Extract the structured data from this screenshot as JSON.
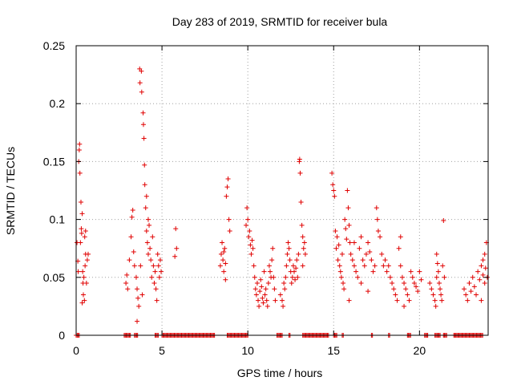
{
  "chart_data": {
    "type": "scatter",
    "title": "Day 283 of 2019, SRMTID for receiver bula",
    "xlabel": "GPS time / hours",
    "ylabel": "SRMTID / TECUs",
    "xlim": [
      0,
      24
    ],
    "ylim": [
      0,
      0.25
    ],
    "xticks": [
      0,
      5,
      10,
      15,
      20
    ],
    "xtick_labels": [
      "0",
      "5",
      "10",
      "15",
      "20"
    ],
    "yticks": [
      0,
      0.05,
      0.1,
      0.15,
      0.2,
      0.25
    ],
    "ytick_labels": [
      "0",
      "0.05",
      "0.1",
      "0.15",
      "0.2",
      "0.25"
    ],
    "grid": true,
    "marker": "+",
    "color": "#e00000",
    "series": [
      {
        "name": "SRMTID",
        "points": [
          [
            0.05,
            0.08
          ],
          [
            0.1,
            0.064
          ],
          [
            0.12,
            0.055
          ],
          [
            0.15,
            0.15
          ],
          [
            0.18,
            0.16
          ],
          [
            0.2,
            0.165
          ],
          [
            0.22,
            0.14
          ],
          [
            0.25,
            0.08
          ],
          [
            0.28,
            0.115
          ],
          [
            0.3,
            0.092
          ],
          [
            0.32,
            0.088
          ],
          [
            0.35,
            0.105
          ],
          [
            0.38,
            0.055
          ],
          [
            0.4,
            0.045
          ],
          [
            0.42,
            0.035
          ],
          [
            0.45,
            0.05
          ],
          [
            0.48,
            0.03
          ],
          [
            0.5,
            0.085
          ],
          [
            0.52,
            0.06
          ],
          [
            0.55,
            0.07
          ],
          [
            0.6,
            0.045
          ],
          [
            0.65,
            0.065
          ],
          [
            0.7,
            0.07
          ],
          [
            0.55,
            0.09
          ],
          [
            0.35,
            0.028
          ],
          [
            2.9,
            0.045
          ],
          [
            2.95,
            0.052
          ],
          [
            3.0,
            0.04
          ],
          [
            3.1,
            0.065
          ],
          [
            3.2,
            0.085
          ],
          [
            3.25,
            0.102
          ],
          [
            3.3,
            0.108
          ],
          [
            3.35,
            0.072
          ],
          [
            3.4,
            0.06
          ],
          [
            3.5,
            0.05
          ],
          [
            3.55,
            0.04
          ],
          [
            3.6,
            0.032
          ],
          [
            3.65,
            0.025
          ],
          [
            3.7,
            0.23
          ],
          [
            3.72,
            0.218
          ],
          [
            3.75,
            0.06
          ],
          [
            3.8,
            0.228
          ],
          [
            3.82,
            0.21
          ],
          [
            3.85,
            0.035
          ],
          [
            3.9,
            0.192
          ],
          [
            3.92,
            0.182
          ],
          [
            3.95,
            0.17
          ],
          [
            3.98,
            0.147
          ],
          [
            4.0,
            0.13
          ],
          [
            4.05,
            0.11
          ],
          [
            4.1,
            0.09
          ],
          [
            4.15,
            0.08
          ],
          [
            4.2,
            0.07
          ],
          [
            4.25,
            0.095
          ],
          [
            4.3,
            0.075
          ],
          [
            4.35,
            0.065
          ],
          [
            4.4,
            0.05
          ],
          [
            4.45,
            0.085
          ],
          [
            4.5,
            0.06
          ],
          [
            4.55,
            0.045
          ],
          [
            4.6,
            0.055
          ],
          [
            4.65,
            0.04
          ],
          [
            4.7,
            0.03
          ],
          [
            4.75,
            0.07
          ],
          [
            4.8,
            0.06
          ],
          [
            4.85,
            0.05
          ],
          [
            4.9,
            0.065
          ],
          [
            4.95,
            0.055
          ],
          [
            3.55,
            0.012
          ],
          [
            4.2,
            0.1
          ],
          [
            4.1,
            0.12
          ],
          [
            5.8,
            0.092
          ],
          [
            5.85,
            0.075
          ],
          [
            5.75,
            0.068
          ],
          [
            8.4,
            0.06
          ],
          [
            8.45,
            0.07
          ],
          [
            8.5,
            0.08
          ],
          [
            8.55,
            0.065
          ],
          [
            8.6,
            0.055
          ],
          [
            8.65,
            0.075
          ],
          [
            8.7,
            0.048
          ],
          [
            8.75,
            0.12
          ],
          [
            8.8,
            0.128
          ],
          [
            8.85,
            0.135
          ],
          [
            8.9,
            0.1
          ],
          [
            8.95,
            0.09
          ],
          [
            8.7,
            0.062
          ],
          [
            8.6,
            0.072
          ],
          [
            9.9,
            0.095
          ],
          [
            9.95,
            0.11
          ],
          [
            10.0,
            0.1
          ],
          [
            10.05,
            0.085
          ],
          [
            10.1,
            0.09
          ],
          [
            10.15,
            0.078
          ],
          [
            10.2,
            0.07
          ],
          [
            10.25,
            0.082
          ],
          [
            10.3,
            0.075
          ],
          [
            10.35,
            0.06
          ],
          [
            10.4,
            0.05
          ],
          [
            10.45,
            0.04
          ],
          [
            10.5,
            0.035
          ],
          [
            10.55,
            0.045
          ],
          [
            10.6,
            0.03
          ],
          [
            10.65,
            0.025
          ],
          [
            10.7,
            0.038
          ],
          [
            10.75,
            0.048
          ],
          [
            10.8,
            0.042
          ],
          [
            10.85,
            0.032
          ],
          [
            10.9,
            0.028
          ],
          [
            10.95,
            0.055
          ],
          [
            11.0,
            0.035
          ],
          [
            11.05,
            0.04
          ],
          [
            11.1,
            0.03
          ],
          [
            11.15,
            0.025
          ],
          [
            11.2,
            0.045
          ],
          [
            11.25,
            0.06
          ],
          [
            11.3,
            0.055
          ],
          [
            11.35,
            0.05
          ],
          [
            11.4,
            0.065
          ],
          [
            11.45,
            0.075
          ],
          [
            11.5,
            0.05
          ],
          [
            11.55,
            0.04
          ],
          [
            11.6,
            0.03
          ],
          [
            11.9,
            0.035
          ],
          [
            12.0,
            0.03
          ],
          [
            12.05,
            0.025
          ],
          [
            12.1,
            0.045
          ],
          [
            12.15,
            0.04
          ],
          [
            12.2,
            0.05
          ],
          [
            12.25,
            0.06
          ],
          [
            12.3,
            0.07
          ],
          [
            12.35,
            0.08
          ],
          [
            12.4,
            0.075
          ],
          [
            12.45,
            0.065
          ],
          [
            12.5,
            0.055
          ],
          [
            12.55,
            0.045
          ],
          [
            12.6,
            0.05
          ],
          [
            12.65,
            0.06
          ],
          [
            12.7,
            0.055
          ],
          [
            12.75,
            0.048
          ],
          [
            12.8,
            0.058
          ],
          [
            12.85,
            0.065
          ],
          [
            12.9,
            0.05
          ],
          [
            12.95,
            0.07
          ],
          [
            13.0,
            0.15
          ],
          [
            13.02,
            0.152
          ],
          [
            13.05,
            0.14
          ],
          [
            13.1,
            0.115
          ],
          [
            13.15,
            0.095
          ],
          [
            13.2,
            0.085
          ],
          [
            13.25,
            0.075
          ],
          [
            13.3,
            0.08
          ],
          [
            13.35,
            0.07
          ],
          [
            13.2,
            0.06
          ],
          [
            14.9,
            0.14
          ],
          [
            14.95,
            0.13
          ],
          [
            15.0,
            0.125
          ],
          [
            15.05,
            0.12
          ],
          [
            15.1,
            0.09
          ],
          [
            15.15,
            0.075
          ],
          [
            15.2,
            0.085
          ],
          [
            15.25,
            0.065
          ],
          [
            15.3,
            0.078
          ],
          [
            15.35,
            0.06
          ],
          [
            15.4,
            0.055
          ],
          [
            15.45,
            0.05
          ],
          [
            15.5,
            0.07
          ],
          [
            15.55,
            0.045
          ],
          [
            15.6,
            0.04
          ],
          [
            15.65,
            0.1
          ],
          [
            15.7,
            0.092
          ],
          [
            15.75,
            0.083
          ],
          [
            15.8,
            0.125
          ],
          [
            15.85,
            0.11
          ],
          [
            15.9,
            0.095
          ],
          [
            15.95,
            0.08
          ],
          [
            16.0,
            0.07
          ],
          [
            16.1,
            0.065
          ],
          [
            16.2,
            0.06
          ],
          [
            16.3,
            0.055
          ],
          [
            16.4,
            0.05
          ],
          [
            16.5,
            0.075
          ],
          [
            16.6,
            0.085
          ],
          [
            16.7,
            0.065
          ],
          [
            16.8,
            0.06
          ],
          [
            16.9,
            0.07
          ],
          [
            17.0,
            0.08
          ],
          [
            17.1,
            0.072
          ],
          [
            17.2,
            0.065
          ],
          [
            17.3,
            0.055
          ],
          [
            17.4,
            0.06
          ],
          [
            17.5,
            0.11
          ],
          [
            17.55,
            0.1
          ],
          [
            17.6,
            0.09
          ],
          [
            17.7,
            0.085
          ],
          [
            17.8,
            0.07
          ],
          [
            17.9,
            0.06
          ],
          [
            18.0,
            0.065
          ],
          [
            18.1,
            0.055
          ],
          [
            18.2,
            0.06
          ],
          [
            18.3,
            0.05
          ],
          [
            18.4,
            0.045
          ],
          [
            18.5,
            0.04
          ],
          [
            18.6,
            0.035
          ],
          [
            18.7,
            0.03
          ],
          [
            18.8,
            0.075
          ],
          [
            18.9,
            0.06
          ],
          [
            19.0,
            0.05
          ],
          [
            19.1,
            0.045
          ],
          [
            19.2,
            0.04
          ],
          [
            19.3,
            0.035
          ],
          [
            19.4,
            0.03
          ],
          [
            19.5,
            0.055
          ],
          [
            19.6,
            0.05
          ],
          [
            19.7,
            0.045
          ],
          [
            19.8,
            0.042
          ],
          [
            19.9,
            0.038
          ],
          [
            20.0,
            0.055
          ],
          [
            20.1,
            0.048
          ],
          [
            16.6,
            0.045
          ],
          [
            17.0,
            0.038
          ],
          [
            15.9,
            0.03
          ],
          [
            16.2,
            0.08
          ],
          [
            18.9,
            0.085
          ],
          [
            19.1,
            0.025
          ],
          [
            20.6,
            0.045
          ],
          [
            20.7,
            0.04
          ],
          [
            20.8,
            0.035
          ],
          [
            20.9,
            0.03
          ],
          [
            21.0,
            0.05
          ],
          [
            21.05,
            0.062
          ],
          [
            21.1,
            0.055
          ],
          [
            21.15,
            0.045
          ],
          [
            21.2,
            0.04
          ],
          [
            21.25,
            0.035
          ],
          [
            21.3,
            0.03
          ],
          [
            21.35,
            0.06
          ],
          [
            21.4,
            0.099
          ],
          [
            21.45,
            0.05
          ],
          [
            20.95,
            0.025
          ],
          [
            21.0,
            0.07
          ],
          [
            22.6,
            0.04
          ],
          [
            22.7,
            0.035
          ],
          [
            22.8,
            0.03
          ],
          [
            22.9,
            0.045
          ],
          [
            23.0,
            0.038
          ],
          [
            23.1,
            0.05
          ],
          [
            23.2,
            0.042
          ],
          [
            23.3,
            0.035
          ],
          [
            23.4,
            0.055
          ],
          [
            23.5,
            0.048
          ],
          [
            23.6,
            0.06
          ],
          [
            23.7,
            0.065
          ],
          [
            23.8,
            0.07
          ],
          [
            23.85,
            0.058
          ],
          [
            23.9,
            0.08
          ],
          [
            23.95,
            0.05
          ],
          [
            23.6,
            0.03
          ],
          [
            23.8,
            0.045
          ],
          [
            23.7,
            0.052
          ]
        ],
        "zero_intervals": [
          [
            0.0,
            0.2
          ],
          [
            2.8,
            3.2
          ],
          [
            3.4,
            3.6
          ],
          [
            4.6,
            4.8
          ],
          [
            5.0,
            8.1
          ],
          [
            8.8,
            10.0
          ],
          [
            11.7,
            12.0
          ],
          [
            12.4,
            12.5
          ],
          [
            13.2,
            14.7
          ],
          [
            15.0,
            15.2
          ],
          [
            15.5,
            15.6
          ],
          [
            17.2,
            17.3
          ],
          [
            18.2,
            18.3
          ],
          [
            19.3,
            19.5
          ],
          [
            20.3,
            20.5
          ],
          [
            20.9,
            21.2
          ],
          [
            21.4,
            21.6
          ],
          [
            22.0,
            23.7
          ]
        ]
      }
    ]
  }
}
